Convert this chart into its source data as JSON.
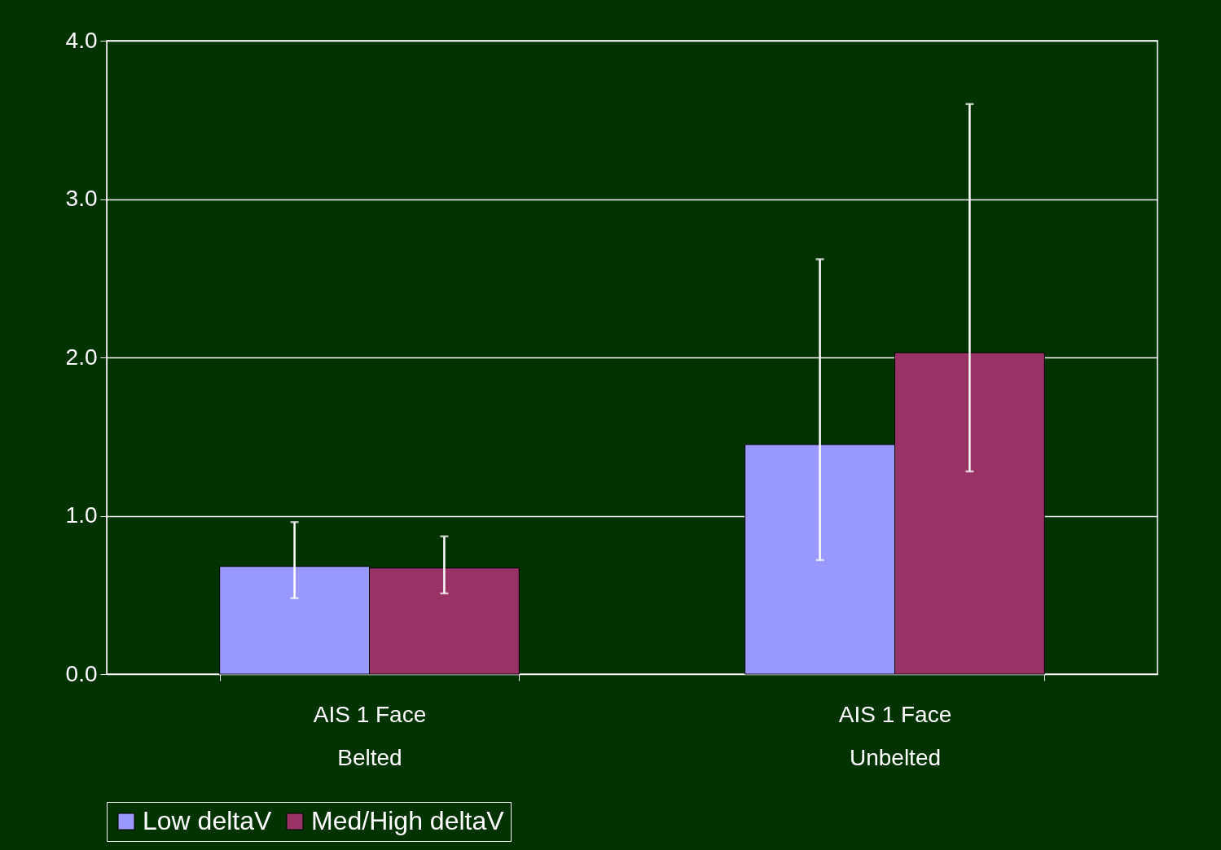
{
  "chart_data": {
    "type": "bar",
    "categories": [
      "AIS 1 Face\nBelted",
      "AIS 1 Face\nUnbelted"
    ],
    "series": [
      {
        "name": "Low deltaV",
        "color": "#9999ff",
        "values": [
          0.68,
          1.45
        ],
        "errors": [
          [
            0.48,
            0.96
          ],
          [
            0.72,
            2.62
          ]
        ]
      },
      {
        "name": "Med/High deltaV",
        "color": "#993366",
        "values": [
          0.67,
          2.03
        ],
        "errors": [
          [
            0.51,
            0.87
          ],
          [
            1.28,
            3.6
          ]
        ]
      }
    ],
    "ylim": [
      0,
      4
    ],
    "yticks": [
      {
        "value": 0,
        "label": "0.0"
      },
      {
        "value": 1,
        "label": "1.0"
      },
      {
        "value": 2,
        "label": "2.0"
      },
      {
        "value": 3,
        "label": "3.0"
      },
      {
        "value": 4,
        "label": "4.0"
      }
    ],
    "grid": "y",
    "legend": "bottom"
  }
}
